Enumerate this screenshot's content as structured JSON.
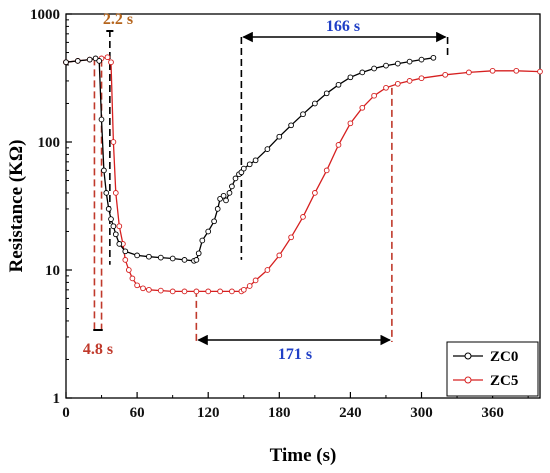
{
  "chart_data": {
    "type": "line",
    "xlabel": "Time (s)",
    "ylabel": "Resistance (KΩ)",
    "xlim": [
      0,
      400
    ],
    "ylim": [
      1,
      1000
    ],
    "yscale": "log",
    "xticks": [
      0,
      60,
      120,
      180,
      240,
      300,
      360
    ],
    "yticks": [
      1,
      10,
      100,
      1000
    ],
    "grid": false,
    "legend_position": "bottom-right",
    "series": [
      {
        "name": "ZC0",
        "color": "#000000",
        "marker": "open-circle",
        "x": [
          0,
          10,
          20,
          25,
          28,
          30,
          32,
          34,
          36,
          38,
          40,
          42,
          45,
          50,
          60,
          70,
          80,
          90,
          100,
          108,
          110,
          112,
          115,
          120,
          125,
          128,
          130,
          133,
          135,
          138,
          140,
          143,
          146,
          148,
          150,
          155,
          160,
          170,
          180,
          190,
          200,
          210,
          220,
          230,
          240,
          250,
          260,
          270,
          280,
          290,
          300,
          310
        ],
        "y": [
          420,
          430,
          440,
          450,
          430,
          150,
          60,
          40,
          30,
          25,
          22,
          19,
          16,
          14,
          13,
          12.7,
          12.5,
          12.3,
          12,
          11.8,
          12,
          13.5,
          17,
          20,
          24,
          30,
          36,
          38,
          35,
          40,
          45,
          52,
          56,
          58,
          62,
          67,
          72,
          88,
          110,
          135,
          165,
          200,
          240,
          280,
          320,
          350,
          375,
          395,
          410,
          425,
          440,
          455
        ]
      },
      {
        "name": "ZC5",
        "color": "#d62020",
        "marker": "open-circle",
        "x": [
          0,
          10,
          20,
          30,
          35,
          38,
          40,
          42,
          45,
          48,
          50,
          53,
          56,
          60,
          65,
          70,
          80,
          90,
          100,
          110,
          120,
          130,
          140,
          148,
          150,
          155,
          160,
          170,
          180,
          190,
          200,
          210,
          220,
          230,
          240,
          250,
          260,
          270,
          280,
          290,
          300,
          320,
          340,
          360,
          380,
          400
        ],
        "y": [
          420,
          430,
          440,
          450,
          460,
          420,
          100,
          40,
          22,
          16,
          12,
          10,
          8.6,
          7.6,
          7.2,
          7,
          6.9,
          6.8,
          6.8,
          6.8,
          6.8,
          6.8,
          6.8,
          6.8,
          7,
          7.5,
          8.3,
          10,
          13,
          18,
          26,
          40,
          60,
          95,
          140,
          185,
          230,
          265,
          285,
          300,
          315,
          335,
          350,
          360,
          360,
          355
        ]
      }
    ],
    "annotations": [
      {
        "text": "2.2 s",
        "color": "#b5651d"
      },
      {
        "text": "4.8 s",
        "color": "#c0392b"
      },
      {
        "text": "166 s",
        "color": "#1f3fc6"
      },
      {
        "text": "171 s",
        "color": "#1f3fc6"
      }
    ]
  }
}
